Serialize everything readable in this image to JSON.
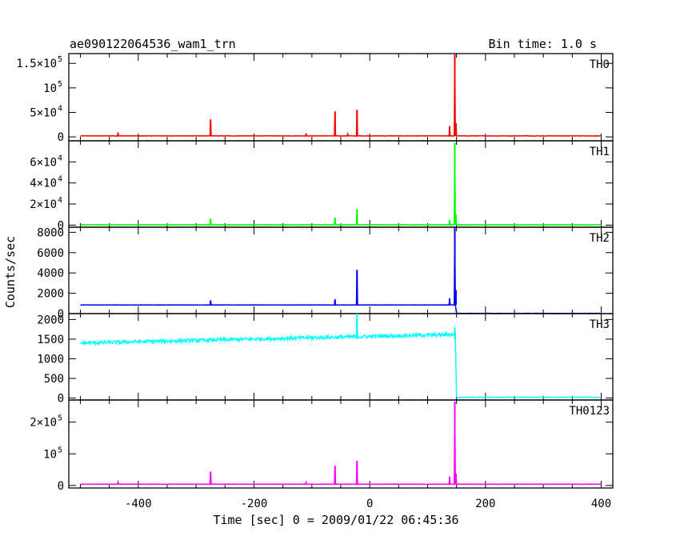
{
  "header": {
    "title": "ae090122064536_wam1_trn",
    "bin_time": "Bin time: 1.0 s"
  },
  "axes": {
    "xlabel": "Time [sec] 0 = 2009/01/22 06:45:36",
    "ylabel": "Counts/sec",
    "xlim": [
      -520,
      420
    ],
    "xticks": [
      -400,
      -200,
      0,
      200,
      400
    ],
    "xtick_labels": [
      "-400",
      "-200",
      "0",
      "200",
      "400"
    ]
  },
  "chart_data": [
    {
      "type": "line",
      "name": "TH0",
      "color": "#ff0000",
      "ylim": [
        -8000,
        170000
      ],
      "yticks": [
        {
          "value": 150000,
          "label": "1.5×10",
          "exp": "5"
        },
        {
          "value": 100000,
          "label": "10",
          "exp": "5"
        },
        {
          "value": 50000,
          "label": "5×10",
          "exp": "4"
        },
        {
          "value": 0,
          "label": "0",
          "exp": ""
        }
      ],
      "baseline": {
        "from_x": -500,
        "to_x": 400,
        "level": 2000
      },
      "spikes": [
        {
          "x": -435,
          "y": 9000
        },
        {
          "x": -275,
          "y": 36000
        },
        {
          "x": -110,
          "y": 7000
        },
        {
          "x": -60,
          "y": 52000
        },
        {
          "x": -38,
          "y": 6000
        },
        {
          "x": -22,
          "y": 55000
        },
        {
          "x": 138,
          "y": 22000
        },
        {
          "x": 147,
          "y": 170000
        },
        {
          "x": 149,
          "y": 28000
        }
      ]
    },
    {
      "type": "line",
      "name": "TH1",
      "color": "#00ff00",
      "ylim": [
        -2000,
        80000
      ],
      "yticks": [
        {
          "value": 60000,
          "label": "6×10",
          "exp": "4"
        },
        {
          "value": 40000,
          "label": "4×10",
          "exp": "4"
        },
        {
          "value": 20000,
          "label": "2×10",
          "exp": "4"
        },
        {
          "value": 0,
          "label": "0",
          "exp": ""
        }
      ],
      "baseline": {
        "from_x": -500,
        "to_x": 400,
        "level": 300
      },
      "spikes": [
        {
          "x": -275,
          "y": 6000
        },
        {
          "x": -60,
          "y": 7000
        },
        {
          "x": -22,
          "y": 15000
        },
        {
          "x": 138,
          "y": 5000
        },
        {
          "x": 147,
          "y": 78000
        },
        {
          "x": 149,
          "y": 10000
        }
      ]
    },
    {
      "type": "line",
      "name": "TH2",
      "color": "#0000ff",
      "ylim": [
        0,
        8500
      ],
      "yticks": [
        {
          "value": 8000,
          "label": "8000",
          "exp": ""
        },
        {
          "value": 6000,
          "label": "6000",
          "exp": ""
        },
        {
          "value": 4000,
          "label": "4000",
          "exp": ""
        },
        {
          "value": 2000,
          "label": "2000",
          "exp": ""
        },
        {
          "value": 0,
          "label": "0",
          "exp": ""
        }
      ],
      "baseline": {
        "from_x": -500,
        "to_x": 148,
        "level": 850,
        "after_x": 150,
        "after_level": 20,
        "end_x": 400
      },
      "spikes": [
        {
          "x": -275,
          "y": 1300
        },
        {
          "x": -60,
          "y": 1400
        },
        {
          "x": -22,
          "y": 4300
        },
        {
          "x": 138,
          "y": 1500
        },
        {
          "x": 147,
          "y": 8500
        },
        {
          "x": 149,
          "y": 2300
        }
      ]
    },
    {
      "type": "line",
      "name": "TH3",
      "color": "#00ffff",
      "ylim": [
        -50,
        2150
      ],
      "yticks": [
        {
          "value": 2000,
          "label": "2000",
          "exp": ""
        },
        {
          "value": 1500,
          "label": "1500",
          "exp": ""
        },
        {
          "value": 1000,
          "label": "1000",
          "exp": ""
        },
        {
          "value": 500,
          "label": "500",
          "exp": ""
        },
        {
          "value": 0,
          "label": "0",
          "exp": ""
        }
      ],
      "baseline": {
        "from_x": -500,
        "to_x": 148,
        "level_start": 1400,
        "level_end": 1620,
        "noise": 90,
        "after_x": 150,
        "after_level": 20,
        "end_x": 400
      },
      "spikes": [
        {
          "x": -22,
          "y": 2150
        },
        {
          "x": 147,
          "y": 1800
        }
      ]
    },
    {
      "type": "line",
      "name": "TH0123",
      "color": "#ff00ff",
      "ylim": [
        -8000,
        270000
      ],
      "yticks": [
        {
          "value": 200000,
          "label": "2×10",
          "exp": "5"
        },
        {
          "value": 100000,
          "label": "10",
          "exp": "5"
        },
        {
          "value": 0,
          "label": "0",
          "exp": ""
        }
      ],
      "baseline": {
        "from_x": -500,
        "to_x": 400,
        "level": 4000
      },
      "spikes": [
        {
          "x": -435,
          "y": 11000
        },
        {
          "x": -275,
          "y": 44000
        },
        {
          "x": -110,
          "y": 10000
        },
        {
          "x": -60,
          "y": 62000
        },
        {
          "x": -22,
          "y": 78000
        },
        {
          "x": 138,
          "y": 28000
        },
        {
          "x": 147,
          "y": 265000
        },
        {
          "x": 149,
          "y": 38000
        }
      ]
    }
  ]
}
